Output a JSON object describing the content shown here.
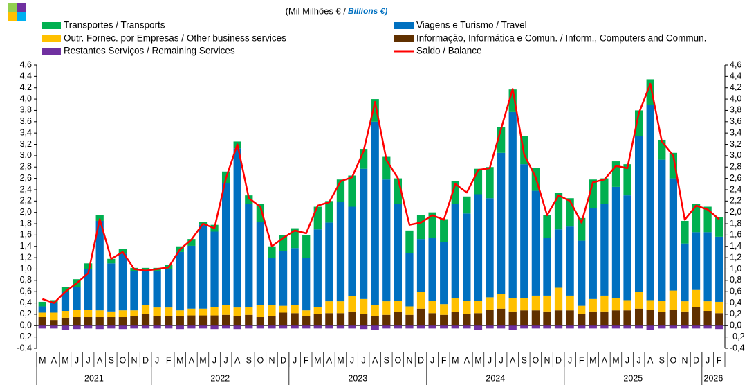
{
  "chart_data": {
    "type": "bar",
    "subtitle": "(Mil Milhões € /",
    "subtitle_en": "Billions €)",
    "categories": [
      "M",
      "A",
      "M",
      "J",
      "J",
      "A",
      "S",
      "O",
      "N",
      "D",
      "J",
      "F",
      "M",
      "A",
      "M",
      "J",
      "J",
      "A",
      "S",
      "O",
      "N",
      "D",
      "J",
      "F",
      "M",
      "A",
      "M",
      "J",
      "J",
      "A",
      "S",
      "O",
      "N",
      "D",
      "J",
      "F",
      "M",
      "A",
      "M",
      "J",
      "J",
      "A",
      "S",
      "O",
      "N",
      "D",
      "J",
      "F",
      "M",
      "A",
      "M",
      "J",
      "J",
      "A",
      "S",
      "O",
      "N",
      "D",
      "J",
      "F"
    ],
    "years": [
      "2021",
      "2022",
      "2023",
      "2024",
      "2025",
      "2026"
    ],
    "series": [
      {
        "name": "Informação, Informática e Comun. / Inform., Computers and Commun.",
        "color": "#603000",
        "type": "bar",
        "values": [
          0.15,
          0.1,
          0.14,
          0.15,
          0.15,
          0.15,
          0.15,
          0.15,
          0.17,
          0.2,
          0.17,
          0.17,
          0.17,
          0.18,
          0.18,
          0.18,
          0.19,
          0.17,
          0.19,
          0.15,
          0.17,
          0.23,
          0.22,
          0.17,
          0.21,
          0.22,
          0.22,
          0.25,
          0.21,
          0.17,
          0.19,
          0.24,
          0.19,
          0.3,
          0.22,
          0.19,
          0.24,
          0.21,
          0.22,
          0.28,
          0.3,
          0.25,
          0.27,
          0.27,
          0.25,
          0.27,
          0.27,
          0.2,
          0.25,
          0.25,
          0.27,
          0.27,
          0.3,
          0.28,
          0.24,
          0.28,
          0.25,
          0.33,
          0.26,
          0.22
        ]
      },
      {
        "name": "Outr. Fornec. por Empresas  / Other business services",
        "color": "#ffc000",
        "type": "bar",
        "values": [
          0.08,
          0.13,
          0.12,
          0.13,
          0.13,
          0.12,
          0.1,
          0.12,
          0.1,
          0.17,
          0.15,
          0.15,
          0.1,
          0.12,
          0.12,
          0.15,
          0.18,
          0.15,
          0.14,
          0.22,
          0.2,
          0.12,
          0.15,
          0.1,
          0.12,
          0.21,
          0.21,
          0.27,
          0.26,
          0.2,
          0.24,
          0.2,
          0.15,
          0.3,
          0.22,
          0.19,
          0.24,
          0.23,
          0.22,
          0.22,
          0.26,
          0.23,
          0.22,
          0.26,
          0.28,
          0.4,
          0.26,
          0.15,
          0.22,
          0.28,
          0.22,
          0.18,
          0.3,
          0.17,
          0.2,
          0.34,
          0.18,
          0.3,
          0.17,
          0.2
        ]
      },
      {
        "name": "Viagens e Turismo / Travel",
        "color": "#0070c0",
        "type": "bar",
        "values": [
          0.11,
          0.17,
          0.34,
          0.4,
          0.72,
          1.58,
          0.85,
          1.0,
          0.69,
          0.6,
          0.65,
          0.68,
          1.03,
          1.11,
          1.48,
          1.33,
          2.15,
          2.81,
          1.82,
          1.46,
          0.83,
          0.97,
          1.0,
          0.93,
          1.37,
          1.39,
          1.75,
          1.58,
          2.3,
          3.23,
          2.15,
          1.71,
          0.94,
          0.93,
          1.11,
          1.1,
          1.67,
          1.54,
          1.88,
          1.75,
          2.49,
          3.29,
          2.36,
          1.85,
          1.02,
          1.03,
          1.22,
          1.15,
          1.61,
          1.62,
          1.96,
          1.85,
          2.75,
          3.45,
          2.49,
          1.98,
          1.02,
          1.02,
          1.22,
          1.15
        ]
      },
      {
        "name": "Transportes / Transports",
        "color": "#00b050",
        "type": "bar",
        "values": [
          0.08,
          0.05,
          0.08,
          0.14,
          0.1,
          0.1,
          0.08,
          0.08,
          0.06,
          0.05,
          0.05,
          0.07,
          0.1,
          0.12,
          0.05,
          0.12,
          0.2,
          0.12,
          0.15,
          0.32,
          0.2,
          0.28,
          0.35,
          0.4,
          0.4,
          0.38,
          0.4,
          0.55,
          0.35,
          0.4,
          0.4,
          0.45,
          0.4,
          0.42,
          0.45,
          0.4,
          0.4,
          0.3,
          0.45,
          0.55,
          0.45,
          0.4,
          0.5,
          0.4,
          0.4,
          0.65,
          0.5,
          0.4,
          0.5,
          0.45,
          0.45,
          0.55,
          0.45,
          0.45,
          0.35,
          0.45,
          0.4,
          0.5,
          0.45,
          0.35
        ]
      },
      {
        "name": "Restantes Serviços / Remaining Services",
        "color": "#7030a0",
        "type": "bar",
        "values": [
          -0.05,
          -0.05,
          -0.07,
          -0.06,
          -0.05,
          -0.06,
          -0.05,
          -0.06,
          -0.05,
          -0.05,
          -0.05,
          -0.05,
          -0.06,
          -0.05,
          -0.05,
          -0.06,
          -0.05,
          -0.06,
          -0.05,
          -0.05,
          -0.05,
          -0.05,
          -0.05,
          -0.05,
          -0.05,
          -0.05,
          -0.05,
          -0.05,
          -0.06,
          -0.08,
          -0.05,
          -0.05,
          -0.05,
          -0.05,
          -0.05,
          -0.05,
          -0.05,
          -0.05,
          -0.07,
          -0.05,
          -0.05,
          -0.08,
          -0.05,
          -0.05,
          -0.05,
          -0.05,
          -0.05,
          -0.05,
          -0.05,
          -0.05,
          -0.05,
          -0.05,
          -0.05,
          -0.07,
          -0.05,
          -0.05,
          -0.05,
          -0.05,
          -0.05,
          -0.06
        ]
      },
      {
        "name": "Saldo / Balance",
        "color": "#ff0000",
        "type": "line",
        "values": [
          0.47,
          0.4,
          0.6,
          0.75,
          0.93,
          1.88,
          1.18,
          1.3,
          1.0,
          0.97,
          1.0,
          1.03,
          1.35,
          1.52,
          1.8,
          1.72,
          2.6,
          3.2,
          2.25,
          2.1,
          1.4,
          1.55,
          1.68,
          1.63,
          2.12,
          2.18,
          2.55,
          2.62,
          3.08,
          3.95,
          2.92,
          2.6,
          1.78,
          1.82,
          1.95,
          1.87,
          2.5,
          2.35,
          2.75,
          2.78,
          3.48,
          4.18,
          3.02,
          2.62,
          1.95,
          2.3,
          2.2,
          1.82,
          2.53,
          2.58,
          2.82,
          2.78,
          3.75,
          4.27,
          3.25,
          3.0,
          1.87,
          2.12,
          2.05,
          1.88
        ]
      }
    ],
    "ylim": [
      -0.4,
      4.6
    ],
    "yticks": [
      {
        "value": -0.4,
        "label": "-0,4"
      },
      {
        "value": -0.2,
        "label": "-0,2"
      },
      {
        "value": 0,
        "label": "0,0"
      },
      {
        "value": 0.2,
        "label": "0,2"
      },
      {
        "value": 0.4,
        "label": "0,4"
      },
      {
        "value": 0.6,
        "label": "0,6"
      },
      {
        "value": 0.8,
        "label": "0,8"
      },
      {
        "value": 1.0,
        "label": "1,0"
      },
      {
        "value": 1.2,
        "label": "1,2"
      },
      {
        "value": 1.4,
        "label": "1,4"
      },
      {
        "value": 1.6,
        "label": "1,6"
      },
      {
        "value": 1.8,
        "label": "1,8"
      },
      {
        "value": 2.0,
        "label": "2,0"
      },
      {
        "value": 2.2,
        "label": "2,2"
      },
      {
        "value": 2.4,
        "label": "2,4"
      },
      {
        "value": 2.6,
        "label": "2,6"
      },
      {
        "value": 2.8,
        "label": "2,8"
      },
      {
        "value": 3.0,
        "label": "3,0"
      },
      {
        "value": 3.2,
        "label": "3,2"
      },
      {
        "value": 3.4,
        "label": "3,4"
      },
      {
        "value": 3.6,
        "label": "3,6"
      },
      {
        "value": 3.8,
        "label": "3,8"
      },
      {
        "value": 4.0,
        "label": "4,0"
      },
      {
        "value": 4.2,
        "label": "4,2"
      },
      {
        "value": 4.4,
        "label": "4,4"
      },
      {
        "value": 4.6,
        "label": "4,6"
      }
    ],
    "y2lim": [
      -0.4,
      4.6
    ],
    "y2ticks": [
      {
        "value": -0.4,
        "label": "-0,4"
      },
      {
        "value": -0.2,
        "label": "-0,2"
      },
      {
        "value": 0,
        "label": "0,0"
      },
      {
        "value": 0.2,
        "label": "0,2"
      },
      {
        "value": 0.4,
        "label": "0,4"
      },
      {
        "value": 0.6,
        "label": "0,6"
      },
      {
        "value": 0.8,
        "label": "0,8"
      },
      {
        "value": 1.0,
        "label": "1,0"
      },
      {
        "value": 1.2,
        "label": "1,2"
      },
      {
        "value": 1.4,
        "label": "1,4"
      },
      {
        "value": 1.6,
        "label": "1,6"
      },
      {
        "value": 1.8,
        "label": "1,8"
      },
      {
        "value": 2.0,
        "label": "2,0"
      },
      {
        "value": 2.2,
        "label": "2,2"
      },
      {
        "value": 2.4,
        "label": "2,4"
      },
      {
        "value": 2.6,
        "label": "2,6"
      },
      {
        "value": 2.8,
        "label": "2,8"
      },
      {
        "value": 3.0,
        "label": "3,0"
      },
      {
        "value": 3.2,
        "label": "3,2"
      },
      {
        "value": 3.4,
        "label": "3,4"
      },
      {
        "value": 3.6,
        "label": "3,6"
      },
      {
        "value": 3.8,
        "label": "3,8"
      },
      {
        "value": 4.0,
        "label": "4,0"
      },
      {
        "value": 4.2,
        "label": "4,2"
      },
      {
        "value": 4.4,
        "label": "4,4"
      },
      {
        "value": 4.6,
        "label": "4,6"
      }
    ],
    "grid": false
  }
}
